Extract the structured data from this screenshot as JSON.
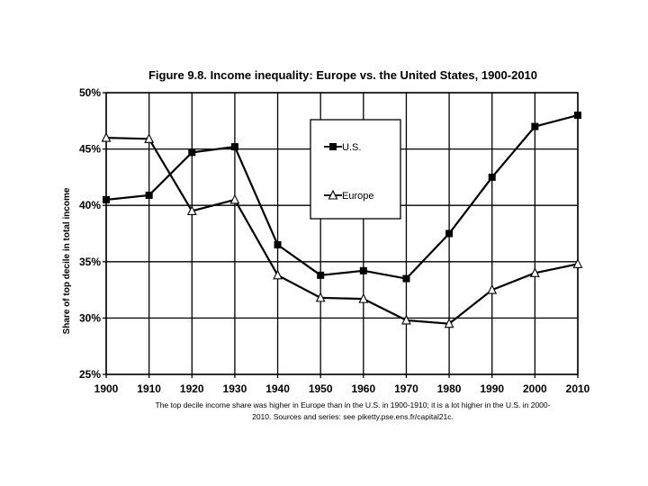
{
  "chart_data": {
    "type": "line",
    "title": "Figure 9.8. Income inequality: Europe vs. the United States, 1900-2010",
    "ylabel": "Share of top decile in total income",
    "xlabel": "",
    "x": [
      1900,
      1910,
      1920,
      1930,
      1940,
      1950,
      1960,
      1970,
      1980,
      1990,
      2000,
      2010
    ],
    "ylim": [
      0.25,
      0.5
    ],
    "yticks": [
      "25%",
      "30%",
      "35%",
      "40%",
      "45%",
      "50%"
    ],
    "grid": true,
    "legend_position": "top-center",
    "series": [
      {
        "name": "U.S.",
        "marker": "filled-square",
        "values": [
          0.405,
          0.409,
          0.447,
          0.452,
          0.365,
          0.338,
          0.342,
          0.335,
          0.375,
          0.425,
          0.47,
          0.48
        ]
      },
      {
        "name": "Europe",
        "marker": "open-triangle",
        "values": [
          0.46,
          0.459,
          0.395,
          0.405,
          0.338,
          0.318,
          0.317,
          0.298,
          0.295,
          0.325,
          0.34,
          0.348
        ]
      }
    ],
    "note_lines": [
      "The top decile income share was higher in Europe than in the U.S. in 1900-1910; it is a lot higher in the U.S. in 2000-",
      "2010. Sources and series: see piketty.pse.ens.fr/capital21c."
    ],
    "colors": {
      "line": "#000000",
      "grid": "#000000",
      "background": "#ffffff"
    }
  }
}
